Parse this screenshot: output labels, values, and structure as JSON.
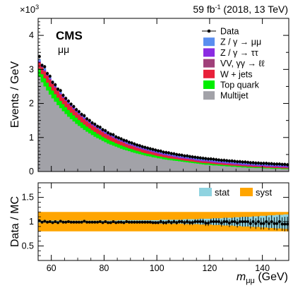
{
  "header": {
    "lumi_text": "59 fb",
    "lumi_sup": "-1",
    "lumi_rest": " (2018, 13 TeV)",
    "exp_label": "CMS",
    "channel": "μμ",
    "exponent_base": "×10",
    "exponent_sup": "3"
  },
  "colors": {
    "multijet": "#a2a2a8",
    "top": "#00ee00",
    "wjets": "#e8203a",
    "vv": "#a0407a",
    "ztautau": "#8a2be2",
    "zmumu": "#5a8ef0",
    "stat_band": "#8fd3e0",
    "syst_band": "#ffa500",
    "data": "#000000"
  },
  "chart_data": [
    {
      "type": "area",
      "subtype": "stacked histogram with data points",
      "ylabel": "Events / GeV",
      "ymultiplier": 1000,
      "ylim": [
        0,
        4.5
      ],
      "xlim": [
        55,
        150
      ],
      "yticks": [
        0,
        0.5,
        1,
        1.5,
        2,
        2.5,
        3,
        3.5,
        4
      ],
      "ytick_labels": [
        "0",
        "",
        "1",
        "",
        "2",
        "",
        "3",
        "",
        "4"
      ],
      "bin_edges_start": 55,
      "bin_width": 1,
      "legend_position": "top-right",
      "legend": [
        {
          "key": "data",
          "label": "Data"
        },
        {
          "key": "zmumu",
          "label": "Z / γ → μμ"
        },
        {
          "key": "ztautau",
          "label": "Z / γ → ττ"
        },
        {
          "key": "vv",
          "label": "VV, γγ → ℓℓ"
        },
        {
          "key": "wjets",
          "label": "W + jets"
        },
        {
          "key": "top",
          "label": "Top quark"
        },
        {
          "key": "multijet",
          "label": "Multijet"
        }
      ],
      "series_cumulative": {
        "multijet": [
          2.78,
          2.62,
          2.5,
          2.38,
          2.26,
          2.15,
          2.05,
          1.95,
          1.86,
          1.77,
          1.69,
          1.61,
          1.54,
          1.47,
          1.4,
          1.34,
          1.28,
          1.22,
          1.17,
          1.12,
          1.07,
          1.02,
          0.98,
          0.94,
          0.9,
          0.86,
          0.82,
          0.79,
          0.76,
          0.73,
          0.7,
          0.67,
          0.64,
          0.62,
          0.6,
          0.57,
          0.55,
          0.53,
          0.51,
          0.49,
          0.47,
          0.45,
          0.44,
          0.42,
          0.41,
          0.39,
          0.38,
          0.36,
          0.35,
          0.34,
          0.33,
          0.32,
          0.31,
          0.3,
          0.29,
          0.28,
          0.27,
          0.26,
          0.25,
          0.24,
          0.23,
          0.22,
          0.21,
          0.2,
          0.2,
          0.19,
          0.18,
          0.18,
          0.17,
          0.16,
          0.16,
          0.15,
          0.15,
          0.14,
          0.14,
          0.13,
          0.13,
          0.12,
          0.12,
          0.11,
          0.11,
          0.11,
          0.1,
          0.1,
          0.1,
          0.09,
          0.09,
          0.09,
          0.08,
          0.08,
          0.08,
          0.08,
          0.07,
          0.07,
          0.07
        ],
        "top": [
          3.02,
          2.86,
          2.74,
          2.61,
          2.49,
          2.38,
          2.27,
          2.17,
          2.07,
          1.98,
          1.89,
          1.81,
          1.73,
          1.65,
          1.58,
          1.51,
          1.44,
          1.38,
          1.32,
          1.27,
          1.21,
          1.16,
          1.11,
          1.07,
          1.02,
          0.98,
          0.94,
          0.9,
          0.87,
          0.83,
          0.8,
          0.77,
          0.74,
          0.71,
          0.68,
          0.66,
          0.63,
          0.61,
          0.59,
          0.56,
          0.54,
          0.52,
          0.51,
          0.49,
          0.47,
          0.45,
          0.44,
          0.42,
          0.41,
          0.39,
          0.38,
          0.37,
          0.36,
          0.35,
          0.33,
          0.32,
          0.31,
          0.3,
          0.29,
          0.28,
          0.27,
          0.26,
          0.25,
          0.24,
          0.24,
          0.23,
          0.22,
          0.21,
          0.21,
          0.2,
          0.19,
          0.19,
          0.18,
          0.17,
          0.17,
          0.16,
          0.16,
          0.15,
          0.15,
          0.14,
          0.14,
          0.13,
          0.13,
          0.13,
          0.12,
          0.12,
          0.11,
          0.11,
          0.11,
          0.1,
          0.1,
          0.1,
          0.09,
          0.09,
          0.09
        ],
        "wjets": [
          3.2,
          3.06,
          2.94,
          2.81,
          2.69,
          2.57,
          2.46,
          2.36,
          2.26,
          2.16,
          2.07,
          1.98,
          1.9,
          1.82,
          1.74,
          1.67,
          1.6,
          1.53,
          1.47,
          1.41,
          1.35,
          1.3,
          1.25,
          1.2,
          1.15,
          1.1,
          1.06,
          1.02,
          0.98,
          0.94,
          0.9,
          0.87,
          0.84,
          0.8,
          0.77,
          0.75,
          0.72,
          0.69,
          0.67,
          0.64,
          0.62,
          0.6,
          0.58,
          0.56,
          0.54,
          0.52,
          0.5,
          0.48,
          0.47,
          0.45,
          0.44,
          0.42,
          0.41,
          0.39,
          0.38,
          0.37,
          0.36,
          0.35,
          0.34,
          0.32,
          0.31,
          0.3,
          0.29,
          0.29,
          0.28,
          0.27,
          0.26,
          0.25,
          0.24,
          0.24,
          0.23,
          0.22,
          0.22,
          0.21,
          0.2,
          0.2,
          0.19,
          0.18,
          0.18,
          0.17,
          0.17,
          0.16,
          0.16,
          0.15,
          0.15,
          0.15,
          0.14,
          0.14,
          0.13,
          0.13,
          0.13,
          0.12,
          0.12,
          0.12,
          0.11
        ],
        "vv": [
          3.21,
          3.07,
          2.95,
          2.82,
          2.7,
          2.58,
          2.47,
          2.37,
          2.27,
          2.17,
          2.08,
          1.99,
          1.91,
          1.83,
          1.75,
          1.68,
          1.61,
          1.54,
          1.48,
          1.42,
          1.36,
          1.31,
          1.26,
          1.21,
          1.16,
          1.11,
          1.07,
          1.03,
          0.99,
          0.95,
          0.91,
          0.88,
          0.85,
          0.81,
          0.78,
          0.76,
          0.73,
          0.7,
          0.68,
          0.65,
          0.63,
          0.61,
          0.59,
          0.57,
          0.55,
          0.53,
          0.51,
          0.49,
          0.48,
          0.46,
          0.45,
          0.43,
          0.42,
          0.4,
          0.39,
          0.38,
          0.37,
          0.36,
          0.35,
          0.33,
          0.32,
          0.31,
          0.3,
          0.3,
          0.29,
          0.28,
          0.27,
          0.26,
          0.25,
          0.25,
          0.24,
          0.23,
          0.23,
          0.22,
          0.21,
          0.21,
          0.2,
          0.19,
          0.19,
          0.18,
          0.18,
          0.17,
          0.17,
          0.16,
          0.16,
          0.16,
          0.15,
          0.15,
          0.14,
          0.14,
          0.14,
          0.13,
          0.13,
          0.13,
          0.12
        ],
        "ztautau": [
          3.24,
          3.1,
          2.98,
          2.85,
          2.73,
          2.61,
          2.5,
          2.4,
          2.3,
          2.2,
          2.11,
          2.02,
          1.94,
          1.86,
          1.78,
          1.71,
          1.64,
          1.57,
          1.51,
          1.45,
          1.39,
          1.34,
          1.29,
          1.24,
          1.19,
          1.14,
          1.1,
          1.06,
          1.02,
          0.98,
          0.94,
          0.91,
          0.88,
          0.84,
          0.81,
          0.79,
          0.76,
          0.73,
          0.71,
          0.68,
          0.66,
          0.64,
          0.62,
          0.6,
          0.58,
          0.56,
          0.54,
          0.52,
          0.51,
          0.49,
          0.48,
          0.46,
          0.45,
          0.43,
          0.42,
          0.41,
          0.4,
          0.39,
          0.38,
          0.36,
          0.35,
          0.34,
          0.33,
          0.33,
          0.32,
          0.31,
          0.3,
          0.29,
          0.28,
          0.28,
          0.27,
          0.26,
          0.26,
          0.25,
          0.24,
          0.24,
          0.23,
          0.22,
          0.22,
          0.21,
          0.21,
          0.2,
          0.2,
          0.19,
          0.19,
          0.19,
          0.18,
          0.18,
          0.17,
          0.17,
          0.17,
          0.16,
          0.16,
          0.16,
          0.15
        ],
        "zmumu": [
          3.3,
          3.16,
          3.04,
          2.91,
          2.79,
          2.67,
          2.56,
          2.46,
          2.36,
          2.26,
          2.17,
          2.08,
          2,
          1.92,
          1.84,
          1.77,
          1.7,
          1.63,
          1.57,
          1.51,
          1.45,
          1.4,
          1.35,
          1.3,
          1.25,
          1.2,
          1.16,
          1.12,
          1.08,
          1.04,
          1,
          0.97,
          0.94,
          0.9,
          0.87,
          0.85,
          0.82,
          0.79,
          0.77,
          0.74,
          0.72,
          0.7,
          0.68,
          0.66,
          0.64,
          0.62,
          0.6,
          0.58,
          0.57,
          0.55,
          0.54,
          0.52,
          0.51,
          0.49,
          0.48,
          0.47,
          0.46,
          0.45,
          0.44,
          0.42,
          0.41,
          0.4,
          0.39,
          0.39,
          0.38,
          0.37,
          0.36,
          0.35,
          0.34,
          0.34,
          0.33,
          0.32,
          0.32,
          0.31,
          0.3,
          0.3,
          0.29,
          0.28,
          0.28,
          0.27,
          0.27,
          0.26,
          0.26,
          0.25,
          0.25,
          0.25,
          0.24,
          0.24,
          0.23,
          0.23,
          0.23,
          0.22,
          0.22,
          0.22,
          0.21
        ]
      },
      "data_x": [
        55.5,
        56.5,
        57.5,
        58.5,
        59.5,
        60.5,
        61.5,
        62.5,
        63.5,
        64.5,
        65.5,
        66.5,
        67.5,
        68.5,
        69.5,
        70.5,
        71.5,
        72.5,
        73.5,
        74.5,
        75.5,
        76.5,
        77.5,
        78.5,
        79.5,
        80.5,
        81.5,
        82.5,
        83.5,
        84.5,
        85.5,
        86.5,
        87.5,
        88.5,
        89.5,
        90.5,
        91.5,
        92.5,
        93.5,
        94.5,
        95.5,
        96.5,
        97.5,
        98.5,
        99.5,
        100.5,
        101.5,
        102.5,
        103.5,
        104.5,
        105.5,
        106.5,
        107.5,
        108.5,
        109.5,
        110.5,
        111.5,
        112.5,
        113.5,
        114.5,
        115.5,
        116.5,
        117.5,
        118.5,
        119.5,
        120.5,
        121.5,
        122.5,
        123.5,
        124.5,
        125.5,
        126.5,
        127.5,
        128.5,
        129.5,
        130.5,
        131.5,
        132.5,
        133.5,
        134.5,
        135.5,
        136.5,
        137.5,
        138.5,
        139.5,
        140.5,
        141.5,
        142.5,
        143.5,
        144.5,
        145.5,
        146.5,
        147.5,
        148.5,
        149.5
      ],
      "data_y": [
        3.38,
        3.12,
        3.08,
        2.88,
        2.8,
        2.62,
        2.55,
        2.42,
        2.38,
        2.24,
        2.15,
        2.07,
        1.98,
        1.91,
        1.82,
        1.76,
        1.68,
        1.64,
        1.55,
        1.5,
        1.43,
        1.39,
        1.33,
        1.3,
        1.23,
        1.2,
        1.14,
        1.1,
        1.08,
        1.02,
        0.99,
        0.96,
        0.92,
        0.9,
        0.86,
        0.84,
        0.81,
        0.78,
        0.76,
        0.73,
        0.71,
        0.69,
        0.67,
        0.65,
        0.63,
        0.61,
        0.6,
        0.57,
        0.56,
        0.55,
        0.53,
        0.52,
        0.5,
        0.49,
        0.48,
        0.46,
        0.46,
        0.44,
        0.43,
        0.42,
        0.41,
        0.4,
        0.39,
        0.38,
        0.37,
        0.37,
        0.36,
        0.35,
        0.34,
        0.33,
        0.33,
        0.32,
        0.31,
        0.31,
        0.3,
        0.29,
        0.29,
        0.28,
        0.28,
        0.27,
        0.26,
        0.26,
        0.25,
        0.25,
        0.24,
        0.24,
        0.24,
        0.23,
        0.23,
        0.22,
        0.22,
        0.22,
        0.21,
        0.21,
        0.2
      ]
    },
    {
      "type": "scatter",
      "subtype": "ratio panel with uncertainty bands",
      "ylabel": "Data / MC",
      "xlabel_var": "m",
      "xlabel_sub": "μμ",
      "xlabel_unit": " (GeV)",
      "xlim": [
        55,
        150
      ],
      "ylim": [
        0.2,
        1.8
      ],
      "yticks": [
        0.5,
        1,
        1.5
      ],
      "ytick_labels": [
        "0.5",
        "1",
        "1.5"
      ],
      "xticks": [
        60,
        80,
        100,
        120,
        140
      ],
      "xtick_labels": [
        "60",
        "80",
        "100",
        "120",
        "140"
      ],
      "legend_position": "top-right",
      "legend": [
        {
          "key": "stat_band",
          "label": "stat"
        },
        {
          "key": "syst_band",
          "label": "syst"
        }
      ],
      "stat_band_halfwidth": [
        0.02,
        0.02,
        0.02,
        0.02,
        0.02,
        0.02,
        0.02,
        0.02,
        0.02,
        0.02,
        0.02,
        0.02,
        0.02,
        0.02,
        0.02,
        0.02,
        0.02,
        0.02,
        0.02,
        0.02,
        0.02,
        0.02,
        0.02,
        0.02,
        0.02,
        0.02,
        0.02,
        0.02,
        0.02,
        0.02,
        0.03,
        0.03,
        0.03,
        0.03,
        0.03,
        0.03,
        0.03,
        0.03,
        0.03,
        0.03,
        0.03,
        0.03,
        0.03,
        0.03,
        0.03,
        0.03,
        0.04,
        0.04,
        0.04,
        0.04,
        0.04,
        0.04,
        0.04,
        0.04,
        0.04,
        0.05,
        0.05,
        0.05,
        0.05,
        0.05,
        0.05,
        0.06,
        0.06,
        0.06,
        0.06,
        0.06,
        0.07,
        0.07,
        0.07,
        0.07,
        0.08,
        0.08,
        0.08,
        0.08,
        0.09,
        0.09,
        0.09,
        0.1,
        0.1,
        0.1,
        0.1,
        0.11,
        0.11,
        0.11,
        0.12,
        0.12,
        0.12,
        0.13,
        0.13,
        0.13,
        0.14,
        0.14,
        0.14,
        0.15,
        0.15
      ],
      "syst_band_halfwidth": 0.2,
      "ratio_y": [
        1.02,
        0.99,
        1.01,
        0.99,
        1.0,
        0.98,
        1.0,
        0.98,
        1.01,
        0.99,
        0.99,
        1.0,
        0.99,
        0.99,
        0.99,
        0.99,
        0.99,
        1.01,
        0.99,
        0.99,
        0.99,
        0.99,
        0.99,
        1.0,
        0.98,
        1.0,
        0.98,
        0.98,
        1.0,
        0.98,
        0.99,
        0.99,
        0.98,
        1.0,
        0.99,
        0.99,
        0.99,
        0.99,
        0.99,
        0.99,
        0.99,
        0.99,
        0.99,
        0.98,
        0.98,
        0.98,
        1.0,
        0.98,
        0.98,
        1.0,
        0.98,
        1.0,
        0.98,
        1.0,
        1.0,
        0.98,
        1.0,
        0.98,
        0.98,
        1.0,
        1.0,
        1.0,
        1.0,
        0.97,
        0.97,
        1.0,
        1.0,
        1.0,
        1.0,
        0.97,
        1.0,
        1.0,
        0.97,
        1.0,
        1.0,
        0.97,
        1.0,
        1.0,
        1.0,
        1.0,
        0.96,
        1.0,
        0.96,
        1.0,
        0.96,
        0.96,
        1.0,
        0.96,
        1.0,
        0.96,
        0.96,
        1.0,
        0.95,
        0.95,
        0.95
      ],
      "ratio_err": [
        0.02,
        0.02,
        0.02,
        0.02,
        0.02,
        0.02,
        0.02,
        0.02,
        0.02,
        0.02,
        0.02,
        0.02,
        0.02,
        0.02,
        0.02,
        0.02,
        0.02,
        0.02,
        0.02,
        0.02,
        0.02,
        0.02,
        0.02,
        0.02,
        0.02,
        0.02,
        0.02,
        0.02,
        0.02,
        0.02,
        0.03,
        0.03,
        0.03,
        0.03,
        0.03,
        0.03,
        0.03,
        0.03,
        0.03,
        0.03,
        0.03,
        0.03,
        0.03,
        0.03,
        0.03,
        0.03,
        0.04,
        0.04,
        0.04,
        0.04,
        0.04,
        0.04,
        0.04,
        0.04,
        0.04,
        0.05,
        0.05,
        0.05,
        0.05,
        0.05,
        0.05,
        0.06,
        0.06,
        0.06,
        0.06,
        0.06,
        0.07,
        0.07,
        0.07,
        0.07,
        0.08,
        0.08,
        0.08,
        0.08,
        0.09,
        0.09,
        0.09,
        0.1,
        0.1,
        0.1,
        0.1,
        0.11,
        0.11,
        0.11,
        0.12,
        0.12,
        0.12,
        0.13,
        0.13,
        0.13,
        0.14,
        0.14,
        0.14,
        0.15,
        0.15
      ]
    }
  ]
}
